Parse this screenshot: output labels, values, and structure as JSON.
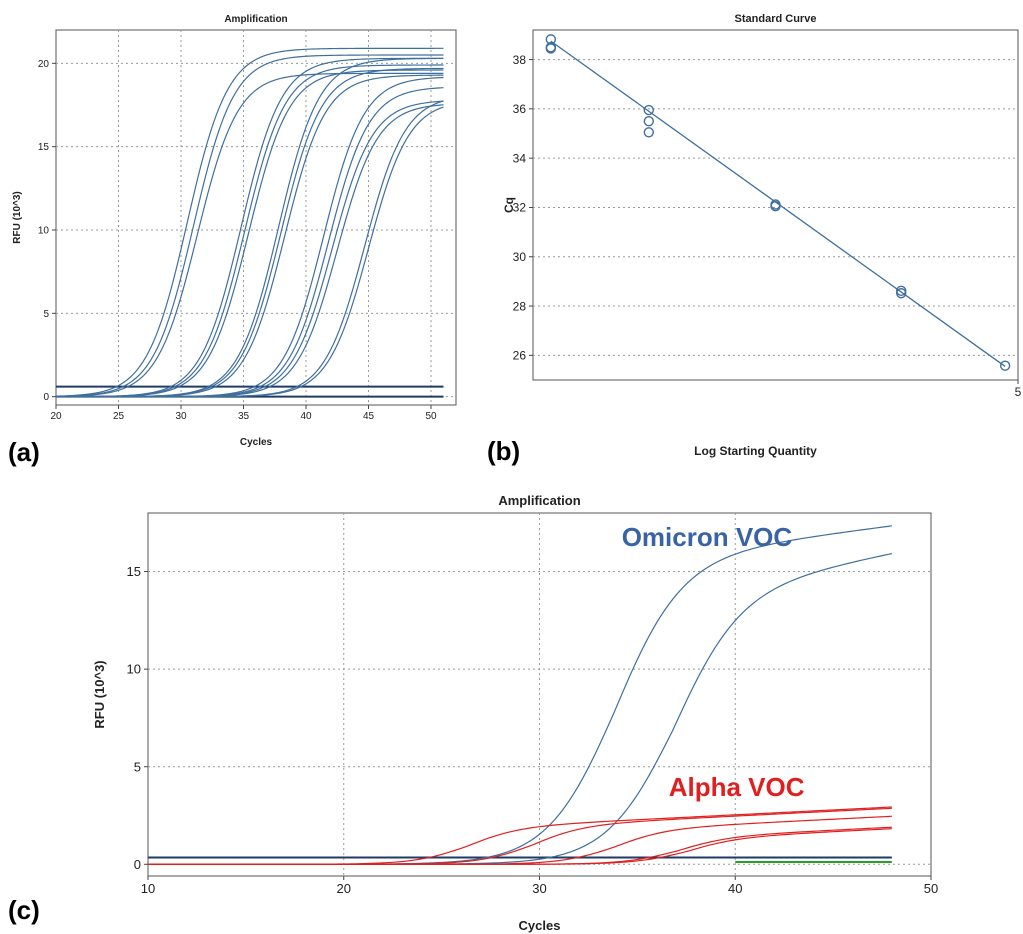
{
  "panel_labels": [
    "(a)",
    "(b)",
    "(c)"
  ],
  "colors": {
    "blue": "#3f6f9e",
    "dark_blue": "#1f3a63",
    "red": "#e02020",
    "green": "#2aa02a",
    "grid": "#9a9a9a"
  },
  "chart_data": [
    {
      "type": "line",
      "title": "Amplification",
      "xlabel": "Cycles",
      "ylabel": "RFU (10^3)",
      "xlim": [
        20,
        52
      ],
      "ylim": [
        -0.5,
        22
      ],
      "xticks": [
        20,
        25,
        30,
        35,
        40,
        45,
        50
      ],
      "yticks": [
        0,
        5,
        10,
        15,
        20
      ],
      "grid": true,
      "baselines": [
        0,
        0.6
      ],
      "series": [
        {
          "mid": 30.5,
          "k": 0.62,
          "top": 20.9
        },
        {
          "mid": 31.0,
          "k": 0.62,
          "top": 20.5
        },
        {
          "mid": 31.3,
          "k": 0.62,
          "top": 19.4
        },
        {
          "mid": 34.8,
          "k": 0.62,
          "top": 20.3
        },
        {
          "mid": 35.1,
          "k": 0.62,
          "top": 19.9
        },
        {
          "mid": 35.4,
          "k": 0.62,
          "top": 19.6
        },
        {
          "mid": 37.8,
          "k": 0.62,
          "top": 20.3
        },
        {
          "mid": 38.0,
          "k": 0.62,
          "top": 19.7
        },
        {
          "mid": 38.3,
          "k": 0.62,
          "top": 19.3
        },
        {
          "mid": 41.4,
          "k": 0.62,
          "top": 19.2
        },
        {
          "mid": 41.8,
          "k": 0.62,
          "top": 18.6
        },
        {
          "mid": 42.1,
          "k": 0.62,
          "top": 17.8
        },
        {
          "mid": 42.5,
          "k": 0.62,
          "top": 17.6
        },
        {
          "mid": 44.7,
          "k": 0.62,
          "top": 18.1
        },
        {
          "mid": 45.0,
          "k": 0.62,
          "top": 17.8
        }
      ]
    },
    {
      "type": "scatter",
      "title": "Standard Curve",
      "xlabel": "Log Starting Quantity",
      "ylabel": "Cq",
      "xlim": [
        0.1,
        5
      ],
      "ylim": [
        25,
        39.2
      ],
      "xticks": [
        5
      ],
      "yticks": [
        26,
        28,
        30,
        32,
        34,
        36,
        38
      ],
      "grid": true,
      "points": [
        {
          "x": 0.28,
          "y": 38.82
        },
        {
          "x": 0.28,
          "y": 38.45
        },
        {
          "x": 0.28,
          "y": 38.5
        },
        {
          "x": 1.27,
          "y": 35.95
        },
        {
          "x": 1.27,
          "y": 35.5
        },
        {
          "x": 1.27,
          "y": 35.05
        },
        {
          "x": 2.55,
          "y": 32.12
        },
        {
          "x": 2.55,
          "y": 32.05
        },
        {
          "x": 3.82,
          "y": 28.62
        },
        {
          "x": 3.82,
          "y": 28.52
        },
        {
          "x": 4.87,
          "y": 25.58
        }
      ],
      "fit_line": [
        {
          "x": 0.28,
          "y": 38.75
        },
        {
          "x": 4.87,
          "y": 25.55
        }
      ]
    },
    {
      "type": "line",
      "title": "Amplification",
      "xlabel": "Cycles",
      "ylabel": "RFU (10^3)",
      "xlim": [
        10,
        50
      ],
      "ylim": [
        -0.6,
        18
      ],
      "xticks": [
        10,
        20,
        30,
        40,
        50
      ],
      "yticks": [
        0,
        5,
        10,
        15
      ],
      "grid": true,
      "annotations": [
        {
          "text": "Omicron VOC",
          "x": 34.2,
          "y": 16.3,
          "color": "#3a63a5"
        },
        {
          "text": "Alpha VOC",
          "x": 36.6,
          "y": 3.5,
          "color": "#e02020"
        }
      ],
      "series": [
        {
          "group": "Omicron",
          "mid": 33.8,
          "k": 0.58,
          "top": 15.5,
          "slope": 0.13,
          "x_end": 48
        },
        {
          "group": "Omicron",
          "mid": 36.8,
          "k": 0.58,
          "top": 13.7,
          "slope": 0.2,
          "x_end": 48
        },
        {
          "group": "Alpha",
          "mid": 26.3,
          "k": 0.75,
          "top": 1.85,
          "slope": 0.05,
          "x_end": 48
        },
        {
          "group": "Alpha",
          "mid": 29.6,
          "k": 0.75,
          "top": 1.95,
          "slope": 0.05,
          "x_end": 48
        },
        {
          "group": "Alpha",
          "mid": 33.8,
          "k": 0.75,
          "top": 1.75,
          "slope": 0.05,
          "x_end": 48
        },
        {
          "group": "Alpha",
          "mid": 37.0,
          "k": 0.75,
          "top": 1.35,
          "slope": 0.05,
          "x_end": 48
        },
        {
          "group": "Alpha",
          "mid": 37.5,
          "k": 0.75,
          "top": 1.3,
          "slope": 0.05,
          "x_end": 48
        }
      ],
      "baselines": [
        {
          "y": 0.35,
          "color": "#1f3a63",
          "x_end": 48
        },
        {
          "y": 0.12,
          "color": "#2aa02a",
          "x_start": 40,
          "x_end": 48
        }
      ]
    }
  ]
}
